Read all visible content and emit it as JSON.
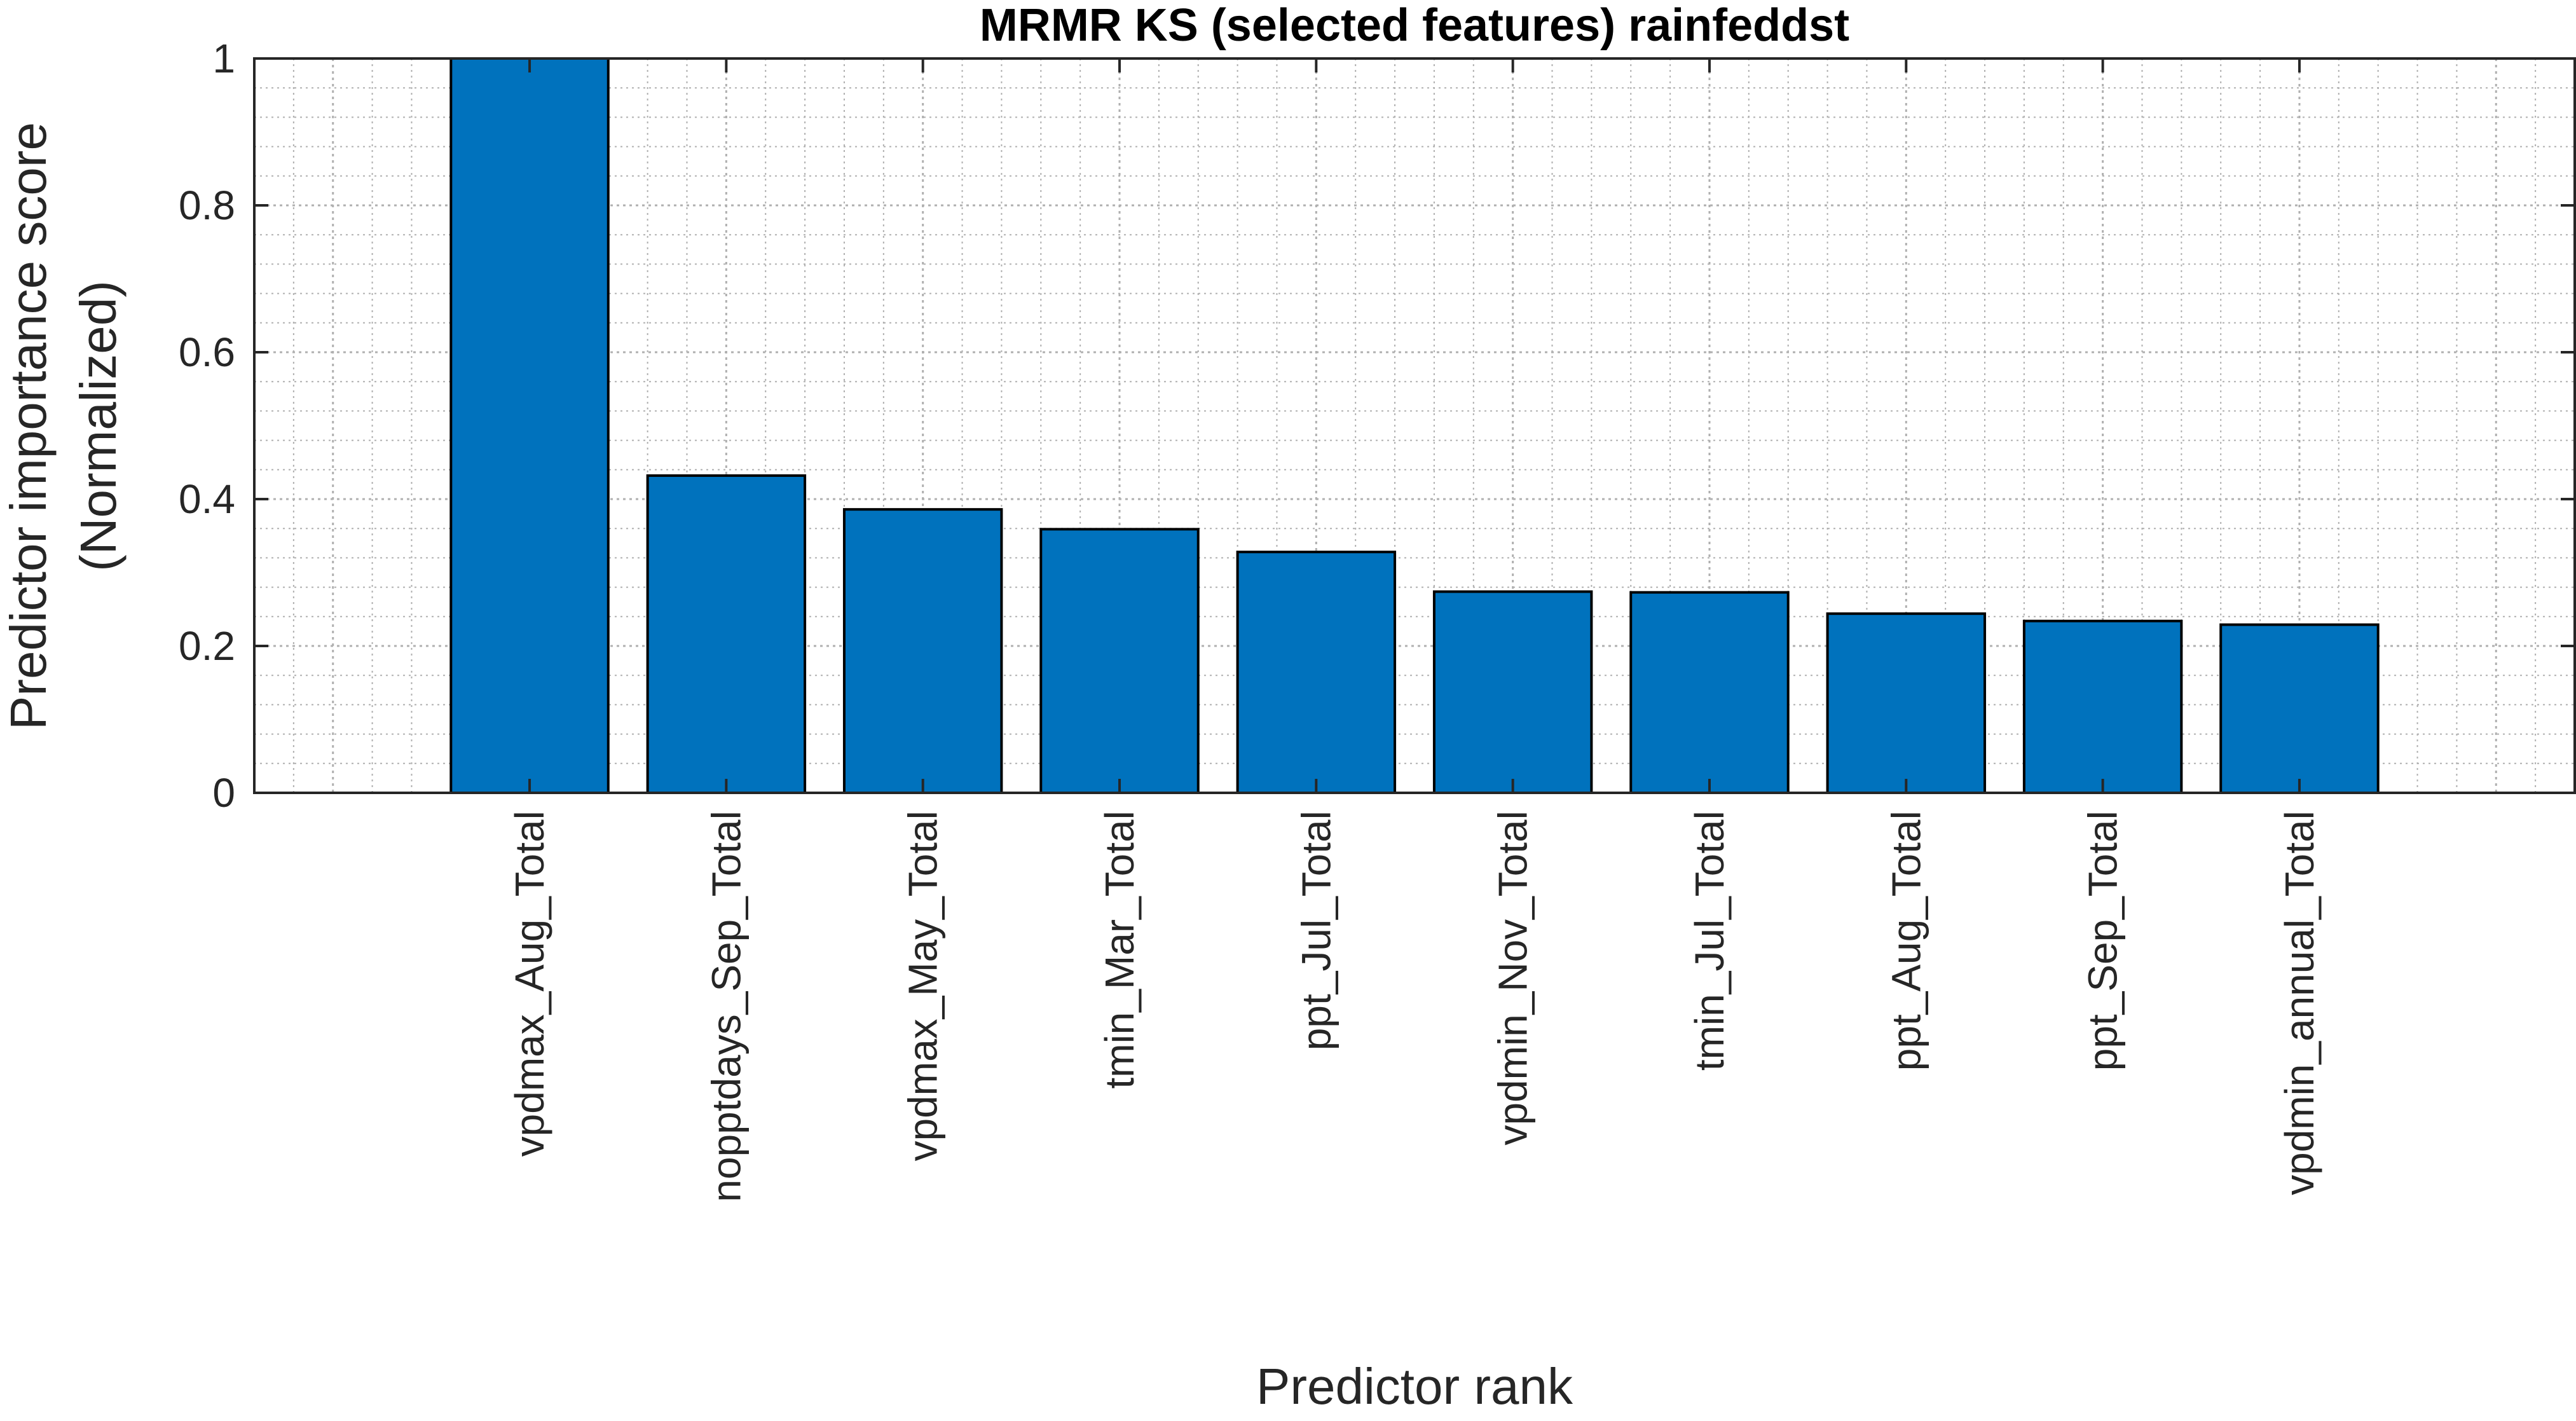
{
  "chart_data": {
    "type": "bar",
    "title": "MRMR KS (selected features) rainfeddst",
    "xlabel": "Predictor rank",
    "ylabel_lines": [
      "Predictor importance score",
      "(Normalized)"
    ],
    "categories": [
      "vpdmax_Aug_Total",
      "nopptdays_Sep_Total",
      "vpdmax_May_Total",
      "tmin_Mar_Total",
      "ppt_Jul_Total",
      "vpdmin_Nov_Total",
      "tmin_Jul_Total",
      "ppt_Aug_Total",
      "ppt_Sep_Total",
      "vpdmin_annual_Total"
    ],
    "values": [
      1.0,
      0.432,
      0.386,
      0.359,
      0.328,
      0.274,
      0.273,
      0.244,
      0.234,
      0.229
    ],
    "ylim": [
      0,
      1
    ],
    "xlim": [
      -0.4,
      11.4
    ],
    "yticks": [
      0,
      0.2,
      0.4,
      0.6,
      0.8,
      1
    ],
    "ytick_labels": [
      "0",
      "0.2",
      "0.4",
      "0.6",
      "0.8",
      "1"
    ],
    "grid": true,
    "minor_grid": true,
    "bar_color": "#0072bd",
    "bar_edge_color": "#000000",
    "grid_color": "#b0b0b0"
  }
}
